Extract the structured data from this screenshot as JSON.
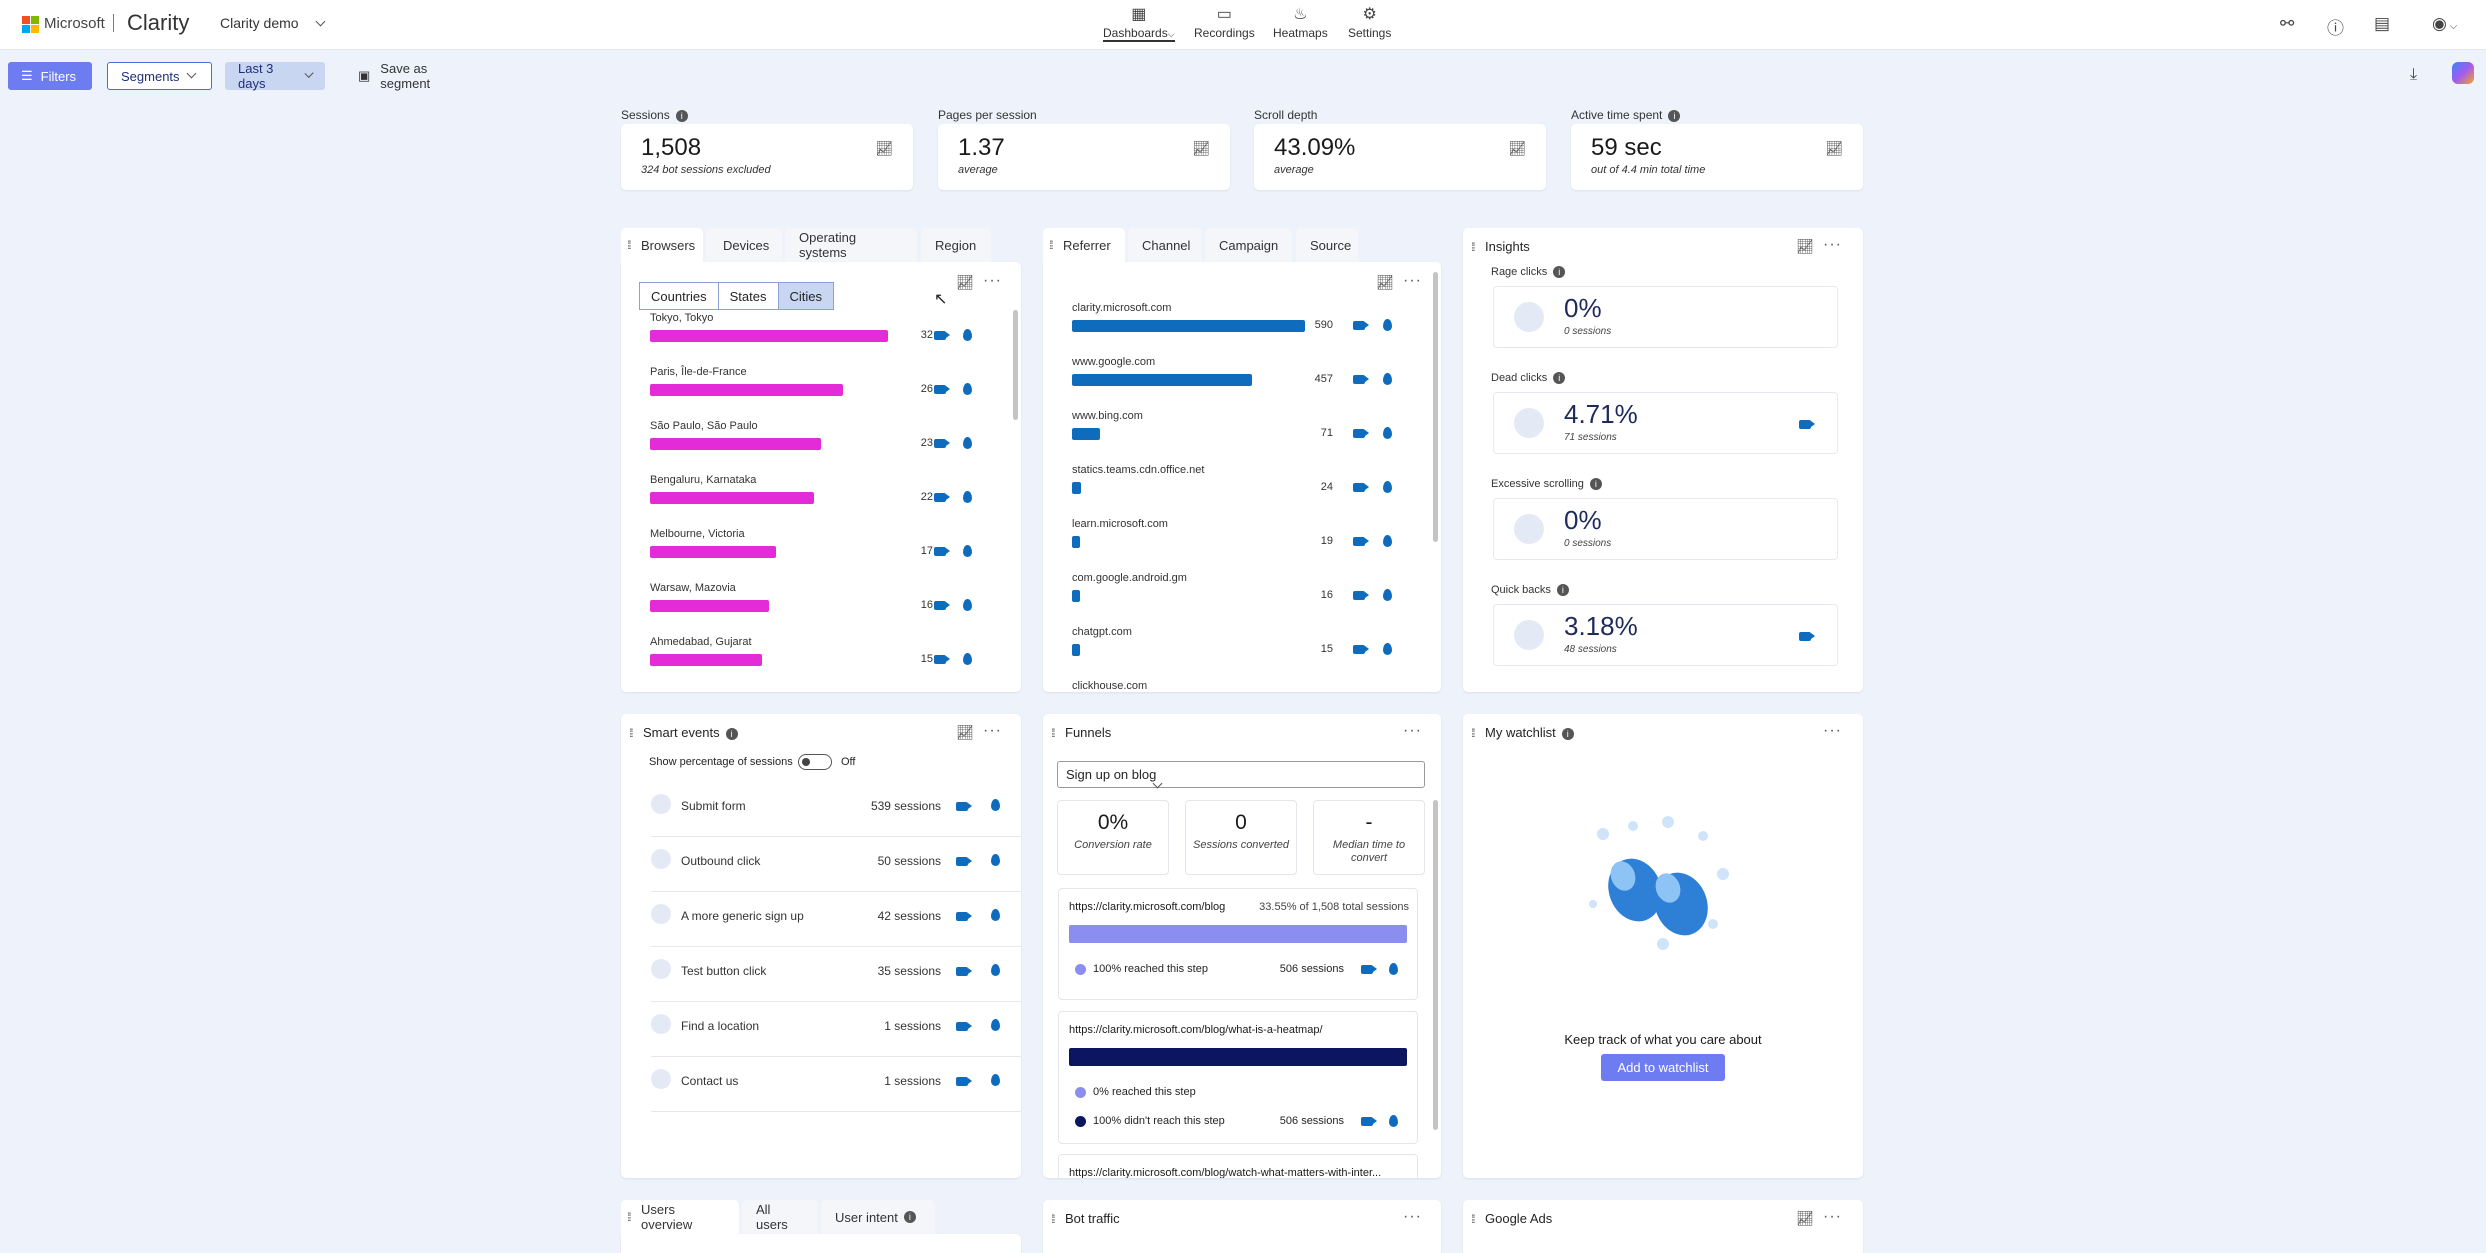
{
  "topbar": {
    "brand": "Microsoft",
    "app": "Clarity",
    "project": "Clarity demo",
    "nav": [
      {
        "label": "Dashboards",
        "icon": "dashboard-icon"
      },
      {
        "label": "Recordings",
        "icon": "video-icon"
      },
      {
        "label": "Heatmaps",
        "icon": "flame-icon"
      },
      {
        "label": "Settings",
        "icon": "gear-icon"
      }
    ]
  },
  "toolbar": {
    "filters": "Filters",
    "segments": "Segments",
    "date_range": "Last 3 days",
    "save_segment": "Save as segment"
  },
  "kpis": [
    {
      "label": "Sessions",
      "value": "1,508",
      "sub": "324 bot sessions excluded"
    },
    {
      "label": "Pages per session",
      "value": "1.37",
      "sub": "average"
    },
    {
      "label": "Scroll depth",
      "value": "43.09%",
      "sub": "average"
    },
    {
      "label": "Active time spent",
      "value": "59 sec",
      "sub": "out of 4.4 min total time"
    }
  ],
  "region": {
    "tabs": [
      "Browsers",
      "Devices",
      "Operating systems",
      "Region"
    ],
    "segments": [
      "Countries",
      "States",
      "Cities"
    ],
    "rows": [
      {
        "name": "Tokyo, Tokyo",
        "count": 32
      },
      {
        "name": "Paris, Île-de-France",
        "count": 26
      },
      {
        "name": "São Paulo, São Paulo",
        "count": 23
      },
      {
        "name": "Bengaluru, Karnataka",
        "count": 22
      },
      {
        "name": "Melbourne, Victoria",
        "count": 17
      },
      {
        "name": "Warsaw, Mazovia",
        "count": 16
      },
      {
        "name": "Ahmedabad, Gujarat",
        "count": 15
      }
    ],
    "bar_color": "#e32bd8"
  },
  "referrer": {
    "tabs": [
      "Referrer",
      "Channel",
      "Campaign",
      "Source"
    ],
    "rows": [
      {
        "name": "clarity.microsoft.com",
        "count": 590
      },
      {
        "name": "www.google.com",
        "count": 457
      },
      {
        "name": "www.bing.com",
        "count": 71
      },
      {
        "name": "statics.teams.cdn.office.net",
        "count": 24
      },
      {
        "name": "learn.microsoft.com",
        "count": 19
      },
      {
        "name": "com.google.android.gm",
        "count": 16
      },
      {
        "name": "chatgpt.com",
        "count": 15
      },
      {
        "name": "clickhouse.com",
        "count": null
      }
    ],
    "bar_color": "#0f6cbd"
  },
  "insights": {
    "title": "Insights",
    "items": [
      {
        "label": "Rage clicks",
        "value": "0%",
        "sub": "0 sessions",
        "recording": false
      },
      {
        "label": "Dead clicks",
        "value": "4.71%",
        "sub": "71 sessions",
        "recording": true
      },
      {
        "label": "Excessive scrolling",
        "value": "0%",
        "sub": "0 sessions",
        "recording": false
      },
      {
        "label": "Quick backs",
        "value": "3.18%",
        "sub": "48 sessions",
        "recording": true
      }
    ]
  },
  "smart_events": {
    "title": "Smart events",
    "toggle_label": "Show percentage of sessions",
    "toggle_state": "Off",
    "rows": [
      {
        "name": "Submit form",
        "count": "539 sessions"
      },
      {
        "name": "Outbound click",
        "count": "50 sessions"
      },
      {
        "name": "A more generic sign up",
        "count": "42 sessions"
      },
      {
        "name": "Test button click",
        "count": "35 sessions"
      },
      {
        "name": "Find a location",
        "count": "1 sessions"
      },
      {
        "name": "Contact us",
        "count": "1 sessions"
      }
    ]
  },
  "funnels": {
    "title": "Funnels",
    "selected": "Sign up on blog",
    "stats": [
      {
        "value": "0%",
        "label": "Conversion rate"
      },
      {
        "value": "0",
        "label": "Sessions converted"
      },
      {
        "value": "-",
        "label": "Median time to convert"
      }
    ],
    "steps": [
      {
        "url": "https://clarity.microsoft.com/blog",
        "total": "33.55% of 1,508 total sessions",
        "reached": "100% reached this step",
        "reached_count": "506 sessions",
        "reached_pct": 100
      },
      {
        "url": "https://clarity.microsoft.com/blog/what-is-a-heatmap/",
        "reached": "0% reached this step",
        "not_reached": "100% didn't reach this step",
        "not_reached_count": "506 sessions",
        "reached_pct": 0
      },
      {
        "url": "https://clarity.microsoft.com/blog/watch-what-matters-with-inter..."
      }
    ],
    "colors": {
      "reached": "#8b8ef0",
      "not_reached": "#0b1560"
    }
  },
  "watchlist": {
    "title": "My watchlist",
    "message": "Keep track of what you care about",
    "button": "Add to watchlist"
  },
  "bottom": {
    "tabs": [
      "Users overview",
      "All users",
      "User intent"
    ],
    "bot_traffic": "Bot traffic",
    "google_ads": "Google Ads"
  },
  "colors": {
    "accent": "#0f6cbd",
    "primary_btn": "#6d7cf0"
  }
}
